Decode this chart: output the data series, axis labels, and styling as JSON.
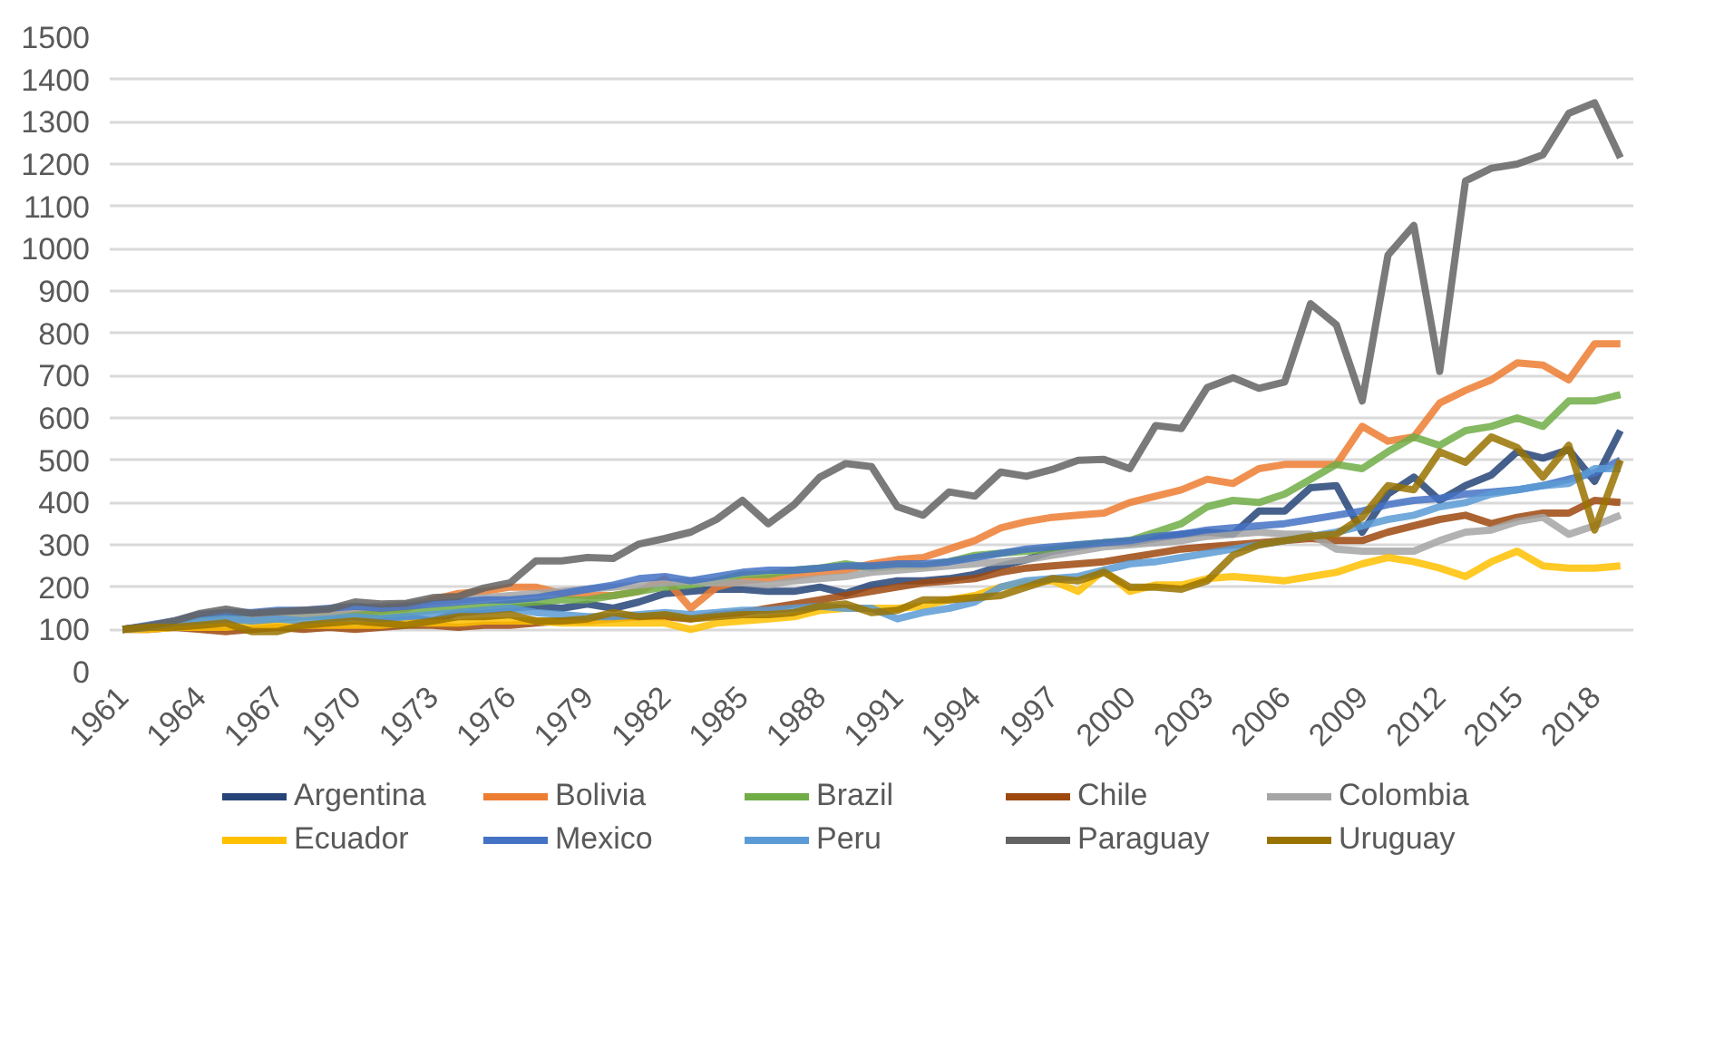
{
  "chart_data": {
    "type": "line",
    "x": [
      1961,
      1962,
      1963,
      1964,
      1965,
      1966,
      1967,
      1968,
      1969,
      1970,
      1971,
      1972,
      1973,
      1974,
      1975,
      1976,
      1977,
      1978,
      1979,
      1980,
      1981,
      1982,
      1983,
      1984,
      1985,
      1986,
      1987,
      1988,
      1989,
      1990,
      1991,
      1992,
      1993,
      1994,
      1995,
      1996,
      1997,
      1998,
      1999,
      2000,
      2001,
      2002,
      2003,
      2004,
      2005,
      2006,
      2007,
      2008,
      2009,
      2010,
      2011,
      2012,
      2013,
      2014,
      2015,
      2016,
      2017,
      2018,
      2019
    ],
    "xlim": [
      1960.5,
      2019.5
    ],
    "xticks": [
      1961,
      1964,
      1967,
      1970,
      1973,
      1976,
      1979,
      1982,
      1985,
      1988,
      1991,
      1994,
      1997,
      2000,
      2003,
      2006,
      2009,
      2012,
      2015,
      2018
    ],
    "ylim": [
      0,
      1500
    ],
    "yticks": [
      0,
      100,
      200,
      300,
      400,
      500,
      600,
      700,
      800,
      900,
      1000,
      1100,
      1200,
      1300,
      1400,
      1500
    ],
    "grid": "y",
    "legend": "bottom",
    "series": [
      {
        "name": "Argentina",
        "color": "#264478",
        "values": [
          100,
          105,
          112,
          125,
          130,
          120,
          125,
          135,
          135,
          130,
          125,
          130,
          120,
          140,
          145,
          150,
          155,
          150,
          160,
          150,
          165,
          185,
          190,
          195,
          195,
          190,
          190,
          200,
          185,
          205,
          215,
          215,
          220,
          230,
          250,
          265,
          285,
          295,
          305,
          305,
          315,
          325,
          330,
          325,
          380,
          380,
          435,
          440,
          330,
          420,
          460,
          405,
          440,
          465,
          520,
          505,
          525,
          450,
          570
        ]
      },
      {
        "name": "Bolivia",
        "color": "#ed7d31",
        "values": [
          100,
          108,
          115,
          125,
          130,
          125,
          130,
          135,
          140,
          140,
          145,
          150,
          170,
          185,
          190,
          200,
          200,
          185,
          180,
          180,
          190,
          220,
          150,
          200,
          215,
          220,
          225,
          235,
          240,
          255,
          265,
          270,
          290,
          310,
          340,
          355,
          365,
          370,
          375,
          400,
          415,
          430,
          455,
          445,
          480,
          490,
          490,
          490,
          580,
          545,
          555,
          635,
          665,
          690,
          730,
          725,
          690,
          775,
          775
        ]
      },
      {
        "name": "Brazil",
        "color": "#70ad47",
        "values": [
          100,
          105,
          110,
          120,
          130,
          125,
          125,
          130,
          130,
          135,
          135,
          140,
          145,
          150,
          155,
          160,
          165,
          170,
          170,
          180,
          190,
          200,
          205,
          215,
          230,
          230,
          240,
          245,
          255,
          245,
          250,
          250,
          260,
          275,
          280,
          285,
          290,
          300,
          305,
          310,
          330,
          350,
          390,
          405,
          400,
          420,
          455,
          490,
          480,
          520,
          555,
          535,
          570,
          580,
          600,
          580,
          640,
          640,
          655
        ]
      },
      {
        "name": "Chile",
        "color": "#9e480e",
        "values": [
          100,
          100,
          105,
          100,
          95,
          100,
          105,
          100,
          105,
          100,
          105,
          110,
          110,
          105,
          110,
          110,
          115,
          120,
          120,
          125,
          130,
          130,
          125,
          135,
          140,
          150,
          160,
          170,
          180,
          190,
          200,
          210,
          215,
          220,
          235,
          245,
          250,
          255,
          260,
          270,
          280,
          290,
          295,
          300,
          305,
          310,
          315,
          310,
          310,
          330,
          345,
          360,
          370,
          350,
          365,
          375,
          375,
          405,
          400
        ]
      },
      {
        "name": "Colombia",
        "color": "#a5a5a5",
        "values": [
          100,
          105,
          110,
          115,
          120,
          125,
          130,
          135,
          140,
          150,
          155,
          160,
          165,
          170,
          175,
          180,
          185,
          190,
          195,
          200,
          205,
          210,
          215,
          210,
          210,
          205,
          215,
          220,
          225,
          235,
          240,
          245,
          250,
          255,
          260,
          265,
          275,
          285,
          295,
          300,
          305,
          310,
          320,
          325,
          330,
          325,
          325,
          290,
          285,
          285,
          285,
          310,
          330,
          335,
          355,
          365,
          325,
          345,
          370
        ]
      },
      {
        "name": "Ecuador",
        "color": "#ffc000",
        "values": [
          100,
          100,
          105,
          105,
          105,
          110,
          110,
          110,
          110,
          110,
          110,
          115,
          115,
          115,
          120,
          120,
          120,
          115,
          115,
          115,
          115,
          115,
          100,
          115,
          120,
          125,
          130,
          145,
          150,
          150,
          150,
          155,
          170,
          180,
          200,
          210,
          215,
          190,
          240,
          190,
          205,
          205,
          220,
          225,
          220,
          215,
          225,
          235,
          255,
          270,
          260,
          245,
          225,
          260,
          285,
          250,
          245,
          245,
          250
        ]
      },
      {
        "name": "Mexico",
        "color": "#4472c4",
        "values": [
          100,
          110,
          120,
          135,
          140,
          140,
          145,
          145,
          150,
          155,
          150,
          155,
          160,
          165,
          170,
          170,
          175,
          185,
          195,
          205,
          220,
          225,
          215,
          225,
          235,
          240,
          240,
          245,
          250,
          250,
          255,
          255,
          260,
          270,
          280,
          290,
          295,
          300,
          305,
          310,
          320,
          325,
          335,
          340,
          345,
          350,
          360,
          370,
          380,
          395,
          405,
          410,
          420,
          425,
          430,
          440,
          455,
          470,
          500
        ]
      },
      {
        "name": "Peru",
        "color": "#5b9bd5",
        "values": [
          100,
          105,
          115,
          120,
          125,
          120,
          125,
          120,
          125,
          130,
          125,
          130,
          135,
          140,
          145,
          150,
          140,
          135,
          130,
          130,
          135,
          140,
          135,
          140,
          145,
          145,
          150,
          155,
          150,
          150,
          125,
          140,
          150,
          165,
          200,
          215,
          220,
          225,
          240,
          255,
          260,
          270,
          280,
          290,
          300,
          310,
          320,
          330,
          345,
          360,
          370,
          390,
          400,
          420,
          430,
          440,
          445,
          480,
          480
        ]
      },
      {
        "name": "Paraguay",
        "color": "#636363",
        "values": [
          100,
          108,
          120,
          138,
          148,
          138,
          142,
          145,
          148,
          165,
          160,
          162,
          175,
          178,
          198,
          210,
          262,
          262,
          270,
          268,
          302,
          315,
          330,
          360,
          405,
          350,
          395,
          460,
          492,
          485,
          390,
          370,
          425,
          415,
          472,
          462,
          478,
          500,
          502,
          480,
          582,
          575,
          672,
          695,
          670,
          685,
          870,
          820,
          640,
          985,
          1055,
          710,
          1160,
          1190,
          1200,
          1222,
          1320,
          1345,
          1215
        ]
      },
      {
        "name": "Uruguay",
        "color": "#997300",
        "values": [
          100,
          105,
          105,
          110,
          115,
          95,
          95,
          110,
          115,
          120,
          115,
          110,
          120,
          130,
          130,
          135,
          120,
          120,
          125,
          140,
          130,
          135,
          125,
          130,
          135,
          135,
          140,
          155,
          160,
          140,
          145,
          170,
          170,
          175,
          180,
          200,
          220,
          215,
          235,
          200,
          200,
          195,
          215,
          275,
          300,
          310,
          320,
          325,
          365,
          440,
          430,
          520,
          495,
          555,
          530,
          460,
          535,
          335,
          500
        ]
      }
    ]
  }
}
